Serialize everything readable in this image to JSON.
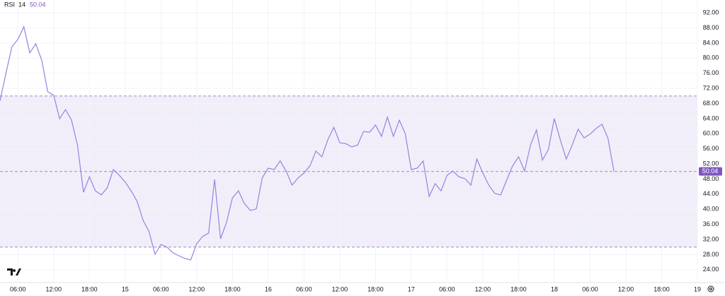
{
  "chart_data": {
    "type": "line",
    "title": "RSI",
    "subtitle": "14",
    "color": "#9b7fe0",
    "band_color": "#7e57c2",
    "grid": true,
    "upper_band": 70,
    "middle_line": 50,
    "lower_band": 30,
    "x": [
      3,
      4,
      5,
      6,
      7,
      8,
      9,
      10,
      11,
      12,
      13,
      14,
      15,
      16,
      17,
      18,
      19,
      20,
      21,
      22,
      23,
      24,
      25,
      26,
      27,
      28,
      29,
      30,
      31,
      32,
      33,
      34,
      35,
      36,
      37,
      38,
      39,
      40,
      41,
      42,
      43,
      44,
      45,
      46,
      47,
      48,
      49,
      50,
      51,
      52,
      53,
      54,
      55,
      56,
      57,
      58,
      59,
      60,
      61,
      62,
      63,
      64,
      65,
      66,
      67,
      68,
      69,
      70,
      71,
      72,
      73,
      74,
      75,
      76,
      77,
      78,
      79,
      80,
      81,
      82,
      83,
      84,
      85,
      86,
      87,
      88,
      89,
      90,
      91,
      92,
      93,
      94,
      95,
      96,
      97,
      98,
      99,
      100,
      101,
      102,
      103,
      104,
      105,
      106
    ],
    "values": [
      68.7,
      76,
      83,
      85,
      88.3,
      81.4,
      83.8,
      79.5,
      71.1,
      70.2,
      64,
      66.4,
      63.6,
      57,
      44.5,
      48.6,
      44.9,
      43.8,
      45.7,
      50.5,
      49,
      47.2,
      44.9,
      42.1,
      37.1,
      34.1,
      28.1,
      30.7,
      30,
      28.5,
      27.7,
      27,
      26.6,
      30.9,
      32.8,
      33.7,
      47.9,
      32.2,
      36.5,
      43,
      44.9,
      41.5,
      39.7,
      40.1,
      48.3,
      50.9,
      50.5,
      52.8,
      50.1,
      46.4,
      48.3,
      49.6,
      51.5,
      55.4,
      53.9,
      58.4,
      61.7,
      57.6,
      57.4,
      56.5,
      57,
      60.6,
      60.4,
      62.3,
      59.3,
      64.4,
      59.3,
      63.6,
      59.9,
      50.5,
      50.9,
      52.8,
      43.4,
      46.8,
      44.9,
      49,
      50.1,
      48.6,
      48.1,
      46.4,
      53.3,
      49.6,
      46.4,
      44.2,
      43.8,
      47.7,
      51.5,
      53.9,
      50.1,
      57,
      61,
      53,
      55.8,
      64,
      58.4,
      53.3,
      57,
      61.2,
      58.9,
      59.9,
      61.4,
      62.5,
      58.8,
      50.04
    ],
    "xlim": [
      3,
      120
    ],
    "xticks": [
      {
        "value": 6,
        "label": "06:00"
      },
      {
        "value": 12,
        "label": "12:00"
      },
      {
        "value": 18,
        "label": "18:00"
      },
      {
        "value": 24,
        "label": "15"
      },
      {
        "value": 30,
        "label": "06:00"
      },
      {
        "value": 36,
        "label": "12:00"
      },
      {
        "value": 42,
        "label": "18:00"
      },
      {
        "value": 48,
        "label": "16"
      },
      {
        "value": 54,
        "label": "06:00"
      },
      {
        "value": 60,
        "label": "12:00"
      },
      {
        "value": 66,
        "label": "18:00"
      },
      {
        "value": 72,
        "label": "17"
      },
      {
        "value": 78,
        "label": "06:00"
      },
      {
        "value": 84,
        "label": "12:00"
      },
      {
        "value": 90,
        "label": "18:00"
      },
      {
        "value": 96,
        "label": "18"
      },
      {
        "value": 102,
        "label": "06:00"
      },
      {
        "value": 108,
        "label": "12:00"
      },
      {
        "value": 114,
        "label": "18:00"
      },
      {
        "value": 120,
        "label": "19"
      }
    ],
    "ylim": [
      20.6,
      95.4
    ],
    "yticks": [
      {
        "value": 24,
        "label": "24.00"
      },
      {
        "value": 28,
        "label": "28.00"
      },
      {
        "value": 32,
        "label": "32.00"
      },
      {
        "value": 36,
        "label": "36.00"
      },
      {
        "value": 40,
        "label": "40.00"
      },
      {
        "value": 44,
        "label": "44.00"
      },
      {
        "value": 48,
        "label": "48.00"
      },
      {
        "value": 52,
        "label": "52.00"
      },
      {
        "value": 56,
        "label": "56.00"
      },
      {
        "value": 60,
        "label": "60.00"
      },
      {
        "value": 64,
        "label": "64.00"
      },
      {
        "value": 68,
        "label": "68.00"
      },
      {
        "value": 72,
        "label": "72.00"
      },
      {
        "value": 76,
        "label": "76.00"
      },
      {
        "value": 80,
        "label": "80.00"
      },
      {
        "value": 84,
        "label": "84.00"
      },
      {
        "value": 88,
        "label": "88.00"
      },
      {
        "value": 92,
        "label": "92.00"
      }
    ]
  }
}
